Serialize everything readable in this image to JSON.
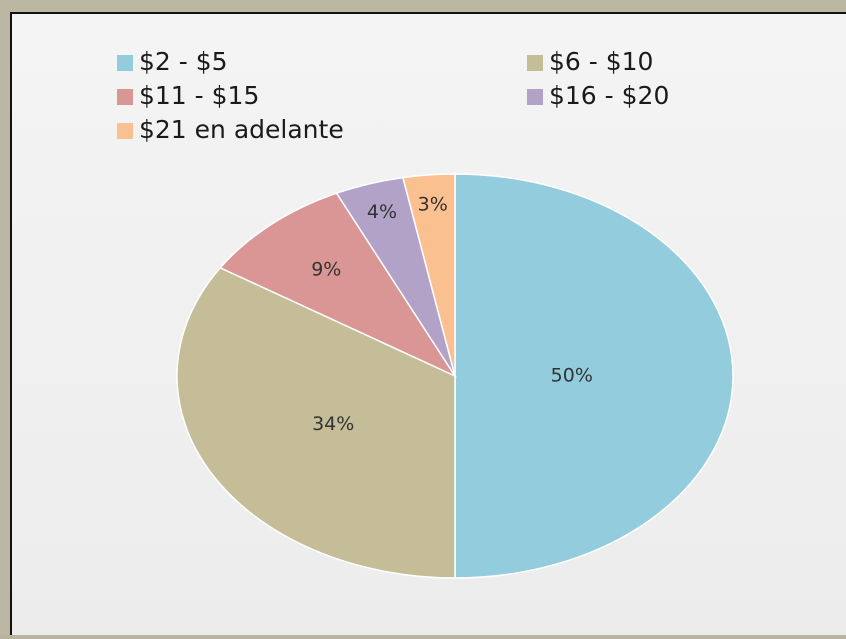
{
  "chart_data": {
    "type": "pie",
    "categories": [
      "$2 - $5",
      "$6 - $10",
      "$11 - $15",
      "$16 - $20",
      "$21 en adelante"
    ],
    "values": [
      50,
      34,
      9,
      4,
      3
    ],
    "value_labels": [
      "50%",
      "34%",
      "9%",
      "4%",
      "3%"
    ],
    "colors": [
      "#93cddd",
      "#c4bd97",
      "#d99694",
      "#b3a2c7",
      "#fac090"
    ],
    "legend": "top"
  }
}
